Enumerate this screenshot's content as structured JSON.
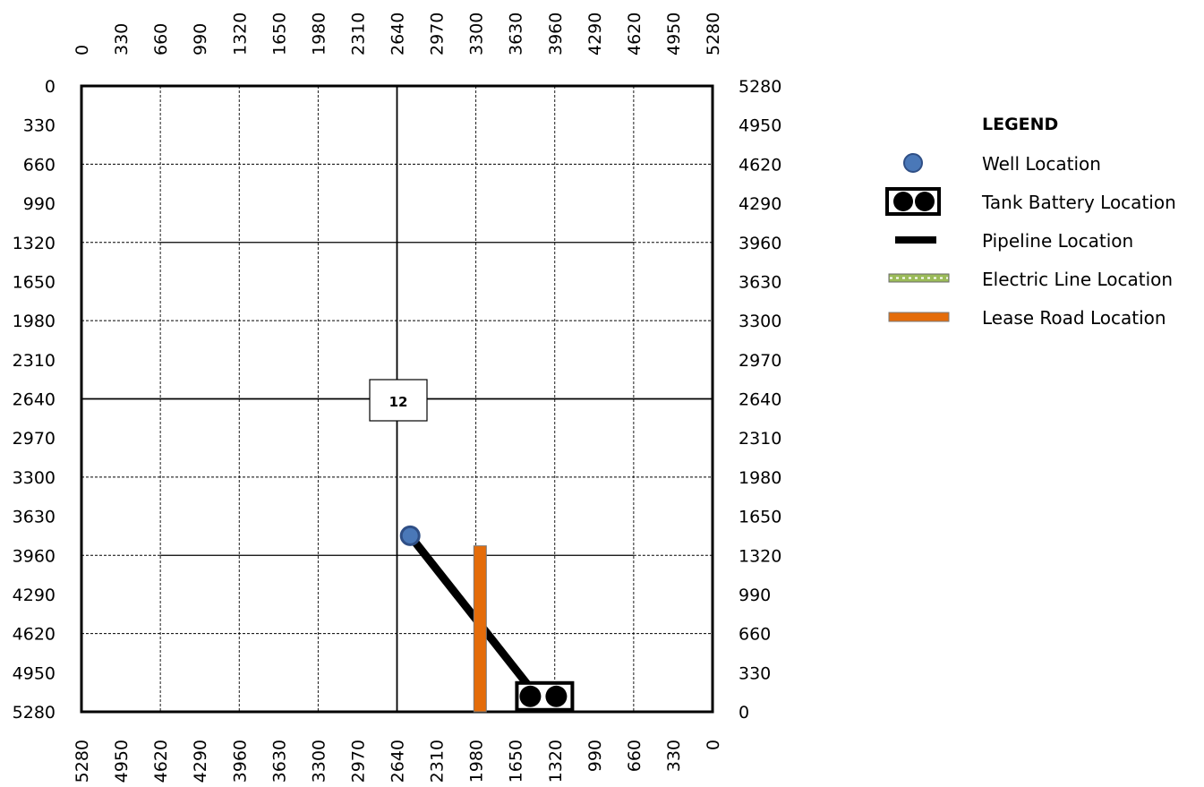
{
  "plat": {
    "top_axis_labels": [
      "0",
      "330",
      "660",
      "990",
      "1320",
      "1650",
      "1980",
      "2310",
      "2640",
      "2970",
      "3300",
      "3630",
      "3960",
      "4290",
      "4620",
      "4950",
      "5280"
    ],
    "bottom_axis_labels": [
      "5280",
      "4950",
      "4620",
      "4290",
      "3960",
      "3630",
      "3300",
      "2970",
      "2640",
      "2310",
      "1980",
      "1650",
      "1320",
      "990",
      "660",
      "330",
      "0"
    ],
    "left_axis_labels": [
      "0",
      "330",
      "660",
      "990",
      "1320",
      "1650",
      "1980",
      "2310",
      "2640",
      "2970",
      "3300",
      "3630",
      "3960",
      "4290",
      "4620",
      "4950",
      "5280"
    ],
    "right_axis_labels": [
      "5280",
      "4950",
      "4620",
      "4290",
      "3960",
      "3630",
      "3300",
      "2970",
      "2640",
      "2310",
      "1980",
      "1650",
      "1320",
      "990",
      "660",
      "330",
      "0"
    ],
    "section_number": "12",
    "section_number_color": "#1f1fcc",
    "extent_ft": 5280,
    "features": {
      "well": {
        "x_from_west_ft": 2750,
        "y_from_north_ft": 3795
      },
      "tank_battery": {
        "x_from_west_ft": 3875,
        "y_from_north_ft": 5150
      },
      "pipeline": {
        "from": {
          "x_from_west_ft": 2750,
          "y_from_north_ft": 3795
        },
        "to": {
          "x_from_west_ft": 3810,
          "y_from_north_ft": 5150
        }
      },
      "lease_road": {
        "x_from_west_ft": 3335,
        "y_start_ft": 3880,
        "y_end_ft": 5280
      }
    }
  },
  "legend": {
    "title": "LEGEND",
    "items": [
      {
        "key": "well",
        "label": "Well Location",
        "icon": "well-dot"
      },
      {
        "key": "tank",
        "label": "Tank Battery Location",
        "icon": "tank-battery"
      },
      {
        "key": "pipeline",
        "label": "Pipeline Location",
        "icon": "pipeline-line"
      },
      {
        "key": "electric",
        "label": "Electric Line Location",
        "icon": "electric-line"
      },
      {
        "key": "road",
        "label": "Lease Road Location",
        "icon": "lease-road"
      }
    ]
  },
  "colors": {
    "well_fill": "#4a78b8",
    "well_outline": "#2f4f86",
    "lease_road": "#e46c0a",
    "electric_line": "#9bbb59",
    "pipeline": "#000000"
  }
}
